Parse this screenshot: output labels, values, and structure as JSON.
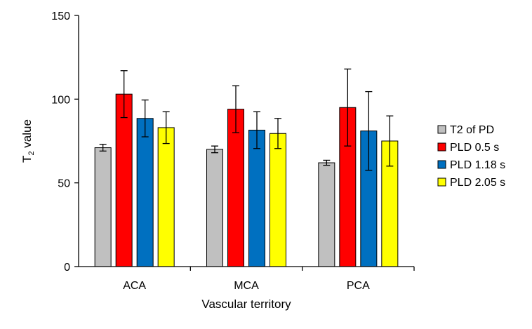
{
  "chart_data": {
    "type": "bar",
    "categories": [
      "ACA",
      "MCA",
      "PCA"
    ],
    "series": [
      {
        "name": "T2 of PD",
        "color": "#c0c0c0",
        "values": [
          71,
          70,
          62
        ],
        "errors": [
          2,
          2,
          1.5
        ]
      },
      {
        "name": "PLD 0.5 s",
        "color": "#ff0000",
        "values": [
          103,
          94,
          95
        ],
        "errors": [
          14,
          14,
          23
        ]
      },
      {
        "name": "PLD 1.18 s",
        "color": "#0070c0",
        "values": [
          88.5,
          81.5,
          81
        ],
        "errors": [
          11,
          11,
          23.5
        ]
      },
      {
        "name": "PLD 2.05 s",
        "color": "#ffff00",
        "values": [
          83,
          79.5,
          75
        ],
        "errors": [
          9.5,
          9,
          15
        ]
      }
    ],
    "title": "",
    "xlabel": "Vascular territory",
    "ylabel_main": "T",
    "ylabel_sub": "2",
    "ylabel_rest": " value",
    "ylim": [
      0,
      150
    ],
    "yticks": [
      0,
      50,
      100,
      150
    ],
    "grid": false,
    "legend_position": "right"
  }
}
